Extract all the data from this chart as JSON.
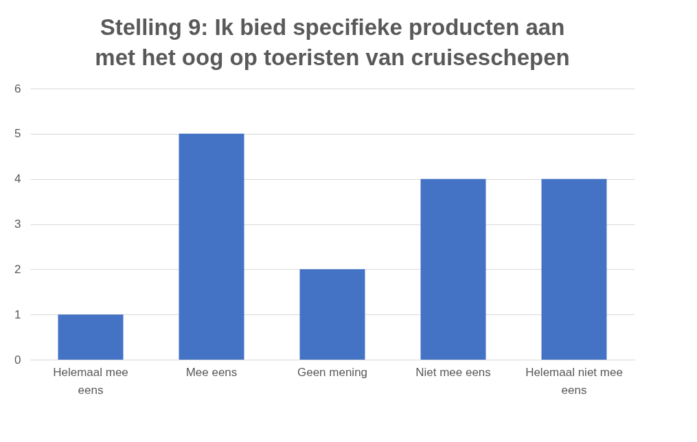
{
  "chart_data": {
    "type": "bar",
    "title": "Stelling 9: Ik bied specifieke producten aan met het oog op toeristen van cruiseschepen",
    "categories": [
      "Helemaal mee eens",
      "Mee eens",
      "Geen mening",
      "Niet mee eens",
      "Helemaal niet mee eens"
    ],
    "values": [
      1,
      5,
      2,
      4,
      4
    ],
    "color": "#4472c4",
    "ylim": [
      0,
      6
    ],
    "yticks": [
      0,
      1,
      2,
      3,
      4,
      5,
      6
    ],
    "grid": "y"
  }
}
